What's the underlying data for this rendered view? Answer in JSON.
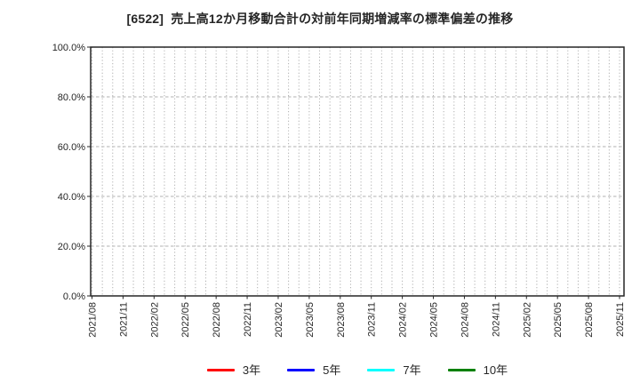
{
  "title": "[6522]  売上高12か月移動合計の対前年同期増減率の標準偏差の推移",
  "y_axis": {
    "labels": [
      "100.0%",
      "80.0%",
      "60.0%",
      "40.0%",
      "20.0%",
      "0.0%"
    ]
  },
  "x_axis": {
    "labels": [
      "2021/08",
      "2021/11",
      "2022/02",
      "2022/05",
      "2022/08",
      "2022/11",
      "2023/02",
      "2023/05",
      "2023/08",
      "2023/11",
      "2024/02",
      "2024/05",
      "2024/08",
      "2024/11",
      "2025/02",
      "2025/05",
      "2025/08",
      "2025/11"
    ]
  },
  "legend": {
    "items": [
      {
        "label": "3年",
        "color": "#ff0000"
      },
      {
        "label": "5年",
        "color": "#0000ff"
      },
      {
        "label": "7年",
        "color": "#00ffff"
      },
      {
        "label": "10年",
        "color": "#008000"
      }
    ]
  },
  "colors": {
    "axis_border": "#262626",
    "gridline": "#b0b0b0",
    "text": "#262626",
    "background": "#ffffff"
  },
  "chart_data": {
    "type": "line",
    "title": "[6522]  売上高12か月移動合計の対前年同期増減率の標準偏差の推移",
    "xlabel": "",
    "ylabel": "",
    "x_start": "2021/08",
    "x_end": "2025/11",
    "x_interval": "monthly",
    "months_total": 52,
    "x_tick_labels": [
      "2021/08",
      "2021/11",
      "2022/02",
      "2022/05",
      "2022/08",
      "2022/11",
      "2023/02",
      "2023/05",
      "2023/08",
      "2023/11",
      "2024/02",
      "2024/05",
      "2024/08",
      "2024/11",
      "2025/02",
      "2025/05",
      "2025/08",
      "2025/11"
    ],
    "ylim": [
      0,
      100
    ],
    "y_ticks_percent": [
      0,
      20,
      40,
      60,
      80,
      100
    ],
    "grid": true,
    "legend_position": "bottom",
    "series": [
      {
        "name": "3年",
        "color": "#ff0000",
        "values": []
      },
      {
        "name": "5年",
        "color": "#0000ff",
        "values": []
      },
      {
        "name": "7年",
        "color": "#00ffff",
        "values": []
      },
      {
        "name": "10年",
        "color": "#008000",
        "values": []
      }
    ]
  }
}
